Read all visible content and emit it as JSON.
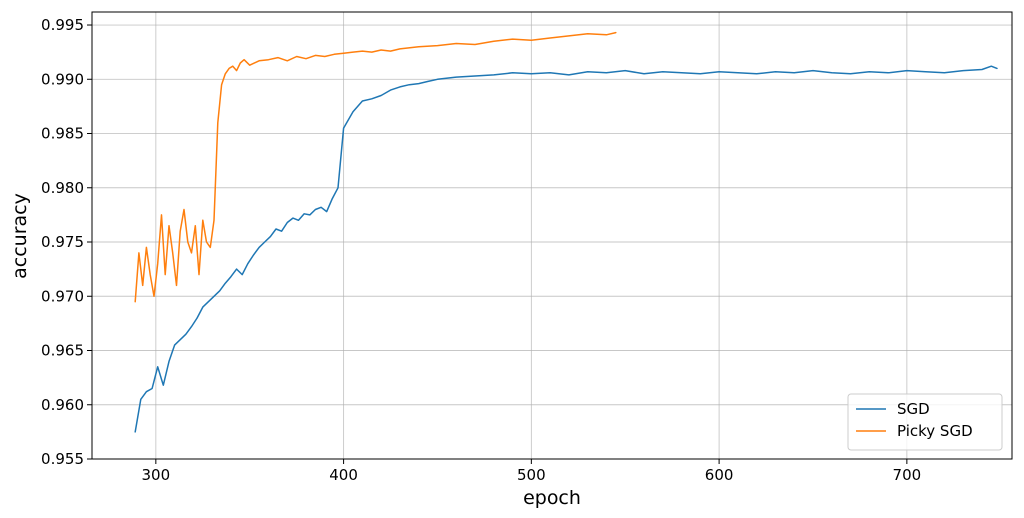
{
  "chart_data": {
    "type": "line",
    "xlabel": "epoch",
    "ylabel": "accuracy",
    "xlim": [
      266,
      756
    ],
    "ylim": [
      0.955,
      0.9962
    ],
    "xticks": [
      300,
      400,
      500,
      600,
      700
    ],
    "yticks": [
      0.955,
      0.96,
      0.965,
      0.97,
      0.975,
      0.98,
      0.985,
      0.99,
      0.995
    ],
    "ytick_labels": [
      "0.955",
      "0.960",
      "0.965",
      "0.970",
      "0.975",
      "0.980",
      "0.985",
      "0.990",
      "0.995"
    ],
    "grid": true,
    "legend_position": "bottom-right",
    "series": [
      {
        "name": "SGD",
        "color": "#1f77b4",
        "x": [
          289,
          292,
          295,
          298,
          301,
          304,
          307,
          310,
          313,
          316,
          319,
          322,
          325,
          328,
          331,
          334,
          337,
          340,
          343,
          346,
          349,
          352,
          355,
          358,
          361,
          364,
          367,
          370,
          373,
          376,
          379,
          382,
          385,
          388,
          391,
          394,
          397,
          400,
          405,
          410,
          415,
          420,
          425,
          430,
          435,
          440,
          445,
          450,
          460,
          470,
          480,
          490,
          500,
          510,
          520,
          530,
          540,
          550,
          560,
          570,
          580,
          590,
          600,
          610,
          620,
          630,
          640,
          650,
          660,
          670,
          680,
          690,
          700,
          710,
          720,
          730,
          740,
          745,
          748
        ],
        "y": [
          0.9575,
          0.9605,
          0.9612,
          0.9615,
          0.9635,
          0.9618,
          0.964,
          0.9655,
          0.966,
          0.9665,
          0.9672,
          0.968,
          0.969,
          0.9695,
          0.97,
          0.9705,
          0.9712,
          0.9718,
          0.9725,
          0.972,
          0.973,
          0.9738,
          0.9745,
          0.975,
          0.9755,
          0.9762,
          0.976,
          0.9768,
          0.9772,
          0.977,
          0.9776,
          0.9775,
          0.978,
          0.9782,
          0.9778,
          0.979,
          0.98,
          0.9855,
          0.987,
          0.988,
          0.9882,
          0.9885,
          0.989,
          0.9893,
          0.9895,
          0.9896,
          0.9898,
          0.99,
          0.9902,
          0.9903,
          0.9904,
          0.9906,
          0.9905,
          0.9906,
          0.9904,
          0.9907,
          0.9906,
          0.9908,
          0.9905,
          0.9907,
          0.9906,
          0.9905,
          0.9907,
          0.9906,
          0.9905,
          0.9907,
          0.9906,
          0.9908,
          0.9906,
          0.9905,
          0.9907,
          0.9906,
          0.9908,
          0.9907,
          0.9906,
          0.9908,
          0.9909,
          0.9912,
          0.991
        ]
      },
      {
        "name": "Picky SGD",
        "color": "#ff7f0e",
        "x": [
          289,
          291,
          293,
          295,
          297,
          299,
          301,
          303,
          305,
          307,
          309,
          311,
          313,
          315,
          317,
          319,
          321,
          323,
          325,
          327,
          329,
          331,
          333,
          335,
          337,
          339,
          341,
          343,
          345,
          347,
          350,
          355,
          360,
          365,
          370,
          375,
          380,
          385,
          390,
          395,
          400,
          405,
          410,
          415,
          420,
          425,
          430,
          440,
          450,
          460,
          470,
          480,
          490,
          500,
          510,
          520,
          530,
          540,
          545
        ],
        "y": [
          0.9695,
          0.974,
          0.971,
          0.9745,
          0.972,
          0.97,
          0.973,
          0.9775,
          0.972,
          0.9765,
          0.974,
          0.971,
          0.976,
          0.978,
          0.975,
          0.974,
          0.9765,
          0.972,
          0.977,
          0.975,
          0.9745,
          0.977,
          0.986,
          0.9895,
          0.9905,
          0.991,
          0.9912,
          0.9908,
          0.9915,
          0.9918,
          0.9913,
          0.9917,
          0.9918,
          0.992,
          0.9917,
          0.9921,
          0.9919,
          0.9922,
          0.9921,
          0.9923,
          0.9924,
          0.9925,
          0.9926,
          0.9925,
          0.9927,
          0.9926,
          0.9928,
          0.993,
          0.9931,
          0.9933,
          0.9932,
          0.9935,
          0.9937,
          0.9936,
          0.9938,
          0.994,
          0.9942,
          0.9941,
          0.9943
        ]
      }
    ]
  }
}
